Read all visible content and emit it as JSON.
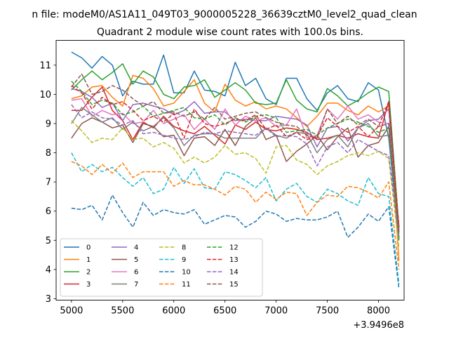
{
  "chart_data": {
    "type": "line",
    "suptitle": "n file: modeM0/AS1A11_049T03_9000005228_36639cztM0_level2_quad_clean",
    "title": "Quadrant 2 module wise count rates with 100.0s bins.",
    "xlabel": "",
    "ylabel": "",
    "x_offset_label": "+3.9496e8",
    "xlim": [
      4850,
      8250
    ],
    "ylim": [
      2.95,
      11.85
    ],
    "xticks": [
      5000,
      5500,
      6000,
      6500,
      7000,
      7500,
      8000
    ],
    "xtick_labels": [
      "5000",
      "5500",
      "6000",
      "6500",
      "7000",
      "7500",
      "8000"
    ],
    "yticks": [
      3,
      4,
      5,
      6,
      7,
      8,
      9,
      10,
      11
    ],
    "ytick_labels": [
      "3",
      "4",
      "5",
      "6",
      "7",
      "8",
      "9",
      "10",
      "11"
    ],
    "grid": false,
    "legend_position": "lower-left",
    "x": [
      5000,
      5100,
      5200,
      5300,
      5400,
      5500,
      5600,
      5700,
      5800,
      5900,
      6000,
      6100,
      6200,
      6300,
      6400,
      6500,
      6600,
      6700,
      6800,
      6900,
      7000,
      7100,
      7200,
      7300,
      7400,
      7500,
      7600,
      7700,
      7800,
      7900,
      8000,
      8100,
      8200
    ],
    "series": [
      {
        "name": "0",
        "color": "#1f77b4",
        "dash": "solid",
        "values": [
          11.45,
          11.25,
          10.9,
          11.3,
          11.0,
          9.95,
          10.45,
          10.35,
          10.35,
          11.35,
          10.05,
          10.05,
          10.8,
          10.15,
          10.1,
          9.95,
          11.1,
          10.3,
          10.55,
          9.85,
          9.65,
          10.55,
          10.55,
          9.85,
          9.45,
          10.05,
          10.3,
          9.85,
          9.75,
          10.4,
          10.15,
          8.5,
          5.0
        ]
      },
      {
        "name": "1",
        "color": "#ff7f0e",
        "dash": "solid",
        "values": [
          9.85,
          9.95,
          10.25,
          10.3,
          9.9,
          9.6,
          10.65,
          10.55,
          10.2,
          9.6,
          9.7,
          10.1,
          10.5,
          9.7,
          9.4,
          10.35,
          9.8,
          9.6,
          9.75,
          9.5,
          9.6,
          9.5,
          9.2,
          8.9,
          9.25,
          9.7,
          9.7,
          9.45,
          9.3,
          9.6,
          9.4,
          9.6,
          4.3
        ]
      },
      {
        "name": "2",
        "color": "#2ca02c",
        "dash": "solid",
        "values": [
          10.15,
          10.5,
          10.8,
          10.5,
          10.75,
          11.05,
          10.35,
          10.8,
          10.6,
          10.0,
          9.85,
          10.25,
          10.3,
          10.5,
          9.9,
          10.15,
          10.4,
          10.15,
          9.7,
          9.65,
          9.7,
          10.5,
          9.8,
          9.5,
          9.4,
          10.2,
          9.95,
          9.6,
          9.8,
          10.05,
          10.25,
          10.1,
          5.4
        ]
      },
      {
        "name": "3",
        "color": "#d62728",
        "dash": "solid",
        "values": [
          9.45,
          9.45,
          9.9,
          10.25,
          9.45,
          9.1,
          8.45,
          9.05,
          8.85,
          9.25,
          8.9,
          8.75,
          8.65,
          8.9,
          8.6,
          8.3,
          8.95,
          8.8,
          9.05,
          8.8,
          8.75,
          8.85,
          8.8,
          8.7,
          8.45,
          8.5,
          8.6,
          8.5,
          8.65,
          8.55,
          8.5,
          9.75,
          5.1
        ]
      },
      {
        "name": "4",
        "color": "#9467bd",
        "dash": "solid",
        "values": [
          10.2,
          10.1,
          9.9,
          9.55,
          9.7,
          9.1,
          9.65,
          9.7,
          9.6,
          9.5,
          9.3,
          9.45,
          9.75,
          9.35,
          9.4,
          9.4,
          9.1,
          9.15,
          9.1,
          9.1,
          9.25,
          9.2,
          9.15,
          8.95,
          8.2,
          8.85,
          8.9,
          8.4,
          8.85,
          9.1,
          9.15,
          9.5,
          5.3
        ]
      },
      {
        "name": "5",
        "color": "#8c564b",
        "dash": "solid",
        "values": [
          8.5,
          9.0,
          9.2,
          9.05,
          8.85,
          8.95,
          8.35,
          9.0,
          8.9,
          8.55,
          8.6,
          7.9,
          8.5,
          8.55,
          8.25,
          8.8,
          8.25,
          8.9,
          9.2,
          8.45,
          8.6,
          7.7,
          8.05,
          8.3,
          8.6,
          8.1,
          8.55,
          8.85,
          7.85,
          8.25,
          8.35,
          8.9,
          5.5
        ]
      },
      {
        "name": "6",
        "color": "#e377c2",
        "dash": "solid",
        "values": [
          9.8,
          9.85,
          9.25,
          9.45,
          9.3,
          9.35,
          9.0,
          9.05,
          9.45,
          9.0,
          9.15,
          9.3,
          8.8,
          9.15,
          8.8,
          9.5,
          8.95,
          9.25,
          9.1,
          9.2,
          8.9,
          8.95,
          9.5,
          8.5,
          8.6,
          9.5,
          9.15,
          9.6,
          9.15,
          9.3,
          9.05,
          9.0,
          5.4
        ]
      },
      {
        "name": "7",
        "color": "#7f7f7f",
        "dash": "solid",
        "values": [
          9.0,
          9.55,
          9.3,
          9.05,
          9.2,
          8.8,
          9.05,
          8.75,
          8.9,
          9.2,
          8.85,
          8.25,
          8.6,
          8.65,
          8.65,
          8.5,
          8.5,
          8.5,
          8.5,
          8.85,
          8.6,
          8.5,
          8.7,
          8.65,
          8.0,
          8.45,
          8.6,
          8.2,
          8.85,
          9.0,
          8.55,
          8.6,
          5.25
        ]
      },
      {
        "name": "8",
        "color": "#bcbd22",
        "dash": "dashed",
        "values": [
          9.1,
          8.75,
          8.35,
          8.5,
          8.45,
          8.85,
          8.45,
          8.5,
          8.2,
          8.35,
          8.15,
          7.65,
          7.85,
          7.65,
          7.85,
          8.25,
          7.95,
          8.0,
          7.8,
          7.3,
          8.2,
          8.25,
          7.75,
          7.6,
          7.25,
          7.55,
          7.7,
          7.9,
          8.0,
          7.9,
          8.05,
          7.8,
          4.75
        ]
      },
      {
        "name": "9",
        "color": "#17becf",
        "dash": "dashed",
        "values": [
          8.0,
          7.35,
          7.6,
          7.35,
          7.5,
          7.15,
          6.85,
          7.15,
          6.6,
          6.75,
          7.5,
          6.95,
          7.45,
          6.8,
          6.75,
          7.35,
          7.25,
          7.05,
          6.8,
          7.15,
          6.35,
          6.75,
          6.95,
          6.5,
          6.3,
          6.75,
          6.6,
          6.35,
          6.2,
          7.15,
          6.6,
          6.5,
          3.5
        ]
      },
      {
        "name": "10",
        "color": "#1f77b4",
        "dash": "dashed",
        "values": [
          6.1,
          6.05,
          6.2,
          5.7,
          6.55,
          5.95,
          5.45,
          6.3,
          5.85,
          6.05,
          5.95,
          5.9,
          6.05,
          5.55,
          5.7,
          5.85,
          5.8,
          5.45,
          5.65,
          6.0,
          5.9,
          5.65,
          5.75,
          5.7,
          5.7,
          5.8,
          6.0,
          5.1,
          5.45,
          5.9,
          5.65,
          6.15,
          3.35
        ]
      },
      {
        "name": "11",
        "color": "#ff7f0e",
        "dash": "dashed",
        "values": [
          7.7,
          7.55,
          7.25,
          7.6,
          7.3,
          7.65,
          7.15,
          7.35,
          7.35,
          7.35,
          6.85,
          7.05,
          6.9,
          6.9,
          6.75,
          6.55,
          6.85,
          6.75,
          6.3,
          6.65,
          6.4,
          6.65,
          6.6,
          5.85,
          6.3,
          6.55,
          6.5,
          6.85,
          6.8,
          6.65,
          6.45,
          7.0,
          4.0
        ]
      },
      {
        "name": "12",
        "color": "#2ca02c",
        "dash": "dashed",
        "values": [
          10.45,
          10.1,
          9.65,
          9.8,
          9.7,
          9.3,
          9.4,
          9.6,
          9.25,
          9.35,
          9.45,
          9.55,
          9.2,
          9.15,
          9.3,
          8.95,
          9.2,
          9.05,
          9.25,
          9.3,
          9.2,
          8.7,
          8.75,
          8.8,
          8.6,
          8.85,
          9.0,
          9.15,
          9.05,
          8.9,
          8.7,
          8.85,
          5.05
        ]
      },
      {
        "name": "13",
        "color": "#d62728",
        "dash": "dashed",
        "values": [
          10.3,
          10.05,
          9.5,
          9.9,
          9.65,
          9.75,
          9.45,
          9.1,
          9.25,
          9.05,
          9.35,
          8.5,
          9.5,
          9.0,
          8.9,
          9.0,
          9.15,
          9.1,
          9.3,
          8.8,
          8.95,
          8.55,
          8.7,
          8.45,
          8.55,
          9.2,
          8.9,
          8.7,
          8.9,
          8.55,
          8.9,
          9.75,
          5.45
        ]
      },
      {
        "name": "14",
        "color": "#9467bd",
        "dash": "dashed",
        "values": [
          9.65,
          9.2,
          9.4,
          9.2,
          9.15,
          8.95,
          9.1,
          8.65,
          8.7,
          8.6,
          8.5,
          8.45,
          8.55,
          8.7,
          8.65,
          8.75,
          8.7,
          8.65,
          8.6,
          8.85,
          8.55,
          8.6,
          8.55,
          8.3,
          7.55,
          8.2,
          8.35,
          8.0,
          8.45,
          8.25,
          8.05,
          7.9,
          5.1
        ]
      },
      {
        "name": "15",
        "color": "#8c564b",
        "dash": "dashed",
        "values": [
          10.25,
          10.7,
          10.0,
          10.1,
          10.3,
          10.15,
          9.85,
          9.6,
          9.75,
          9.35,
          9.4,
          9.25,
          9.4,
          9.15,
          9.55,
          9.15,
          9.25,
          9.35,
          9.4,
          9.2,
          9.05,
          8.95,
          8.9,
          8.6,
          8.5,
          9.5,
          9.0,
          9.25,
          8.95,
          9.15,
          8.9,
          9.0,
          5.3
        ]
      }
    ]
  }
}
